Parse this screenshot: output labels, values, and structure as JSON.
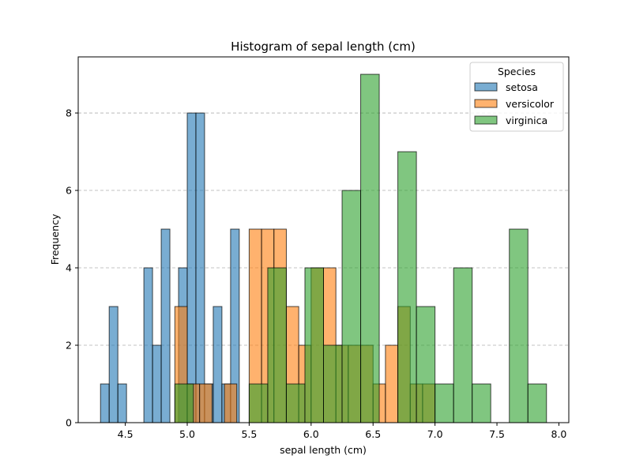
{
  "chart_data": {
    "type": "histogram",
    "title": "Histogram of sepal length (cm)",
    "xlabel": "sepal length (cm)",
    "ylabel": "Frequency",
    "xlim": [
      4.12,
      8.08
    ],
    "ylim": [
      0,
      9.45
    ],
    "xticks": [
      "4.5",
      "5.0",
      "5.5",
      "6.0",
      "6.5",
      "7.0",
      "7.5",
      "8.0"
    ],
    "yticks": [
      "0",
      "2",
      "4",
      "6",
      "8"
    ],
    "grid": "y-dashed",
    "legend": {
      "title": "Species",
      "placement": "top-right",
      "entries": [
        "setosa",
        "versicolor",
        "virginica"
      ]
    },
    "series": [
      {
        "name": "setosa",
        "color": "#1f77b4",
        "bins": [
          {
            "x0": 4.3,
            "x1": 4.37,
            "count": 1
          },
          {
            "x0": 4.37,
            "x1": 4.44,
            "count": 3
          },
          {
            "x0": 4.44,
            "x1": 4.51,
            "count": 1
          },
          {
            "x0": 4.51,
            "x1": 4.58,
            "count": 0
          },
          {
            "x0": 4.58,
            "x1": 4.65,
            "count": 0
          },
          {
            "x0": 4.65,
            "x1": 4.72,
            "count": 4
          },
          {
            "x0": 4.72,
            "x1": 4.79,
            "count": 2
          },
          {
            "x0": 4.79,
            "x1": 4.86,
            "count": 5
          },
          {
            "x0": 4.86,
            "x1": 4.93,
            "count": 0
          },
          {
            "x0": 4.93,
            "x1": 5.0,
            "count": 4
          },
          {
            "x0": 5.0,
            "x1": 5.07,
            "count": 8
          },
          {
            "x0": 5.07,
            "x1": 5.14,
            "count": 8
          },
          {
            "x0": 5.14,
            "x1": 5.21,
            "count": 1
          },
          {
            "x0": 5.21,
            "x1": 5.28,
            "count": 3
          },
          {
            "x0": 5.28,
            "x1": 5.35,
            "count": 1
          },
          {
            "x0": 5.35,
            "x1": 5.42,
            "count": 5
          },
          {
            "x0": 5.42,
            "x1": 5.49,
            "count": 0
          },
          {
            "x0": 5.49,
            "x1": 5.56,
            "count": 0
          },
          {
            "x0": 5.56,
            "x1": 5.63,
            "count": 0
          },
          {
            "x0": 5.63,
            "x1": 5.7,
            "count": 0
          },
          {
            "x0": 5.7,
            "x1": 5.8,
            "count": 0
          }
        ]
      },
      {
        "name": "versicolor",
        "color": "#ff7f0e",
        "bins": [
          {
            "x0": 4.9,
            "x1": 5.0,
            "count": 3
          },
          {
            "x0": 5.0,
            "x1": 5.1,
            "count": 1
          },
          {
            "x0": 5.1,
            "x1": 5.2,
            "count": 1
          },
          {
            "x0": 5.2,
            "x1": 5.3,
            "count": 0
          },
          {
            "x0": 5.3,
            "x1": 5.4,
            "count": 1
          },
          {
            "x0": 5.4,
            "x1": 5.5,
            "count": 0
          },
          {
            "x0": 5.5,
            "x1": 5.6,
            "count": 5
          },
          {
            "x0": 5.6,
            "x1": 5.7,
            "count": 5
          },
          {
            "x0": 5.7,
            "x1": 5.8,
            "count": 5
          },
          {
            "x0": 5.8,
            "x1": 5.9,
            "count": 3
          },
          {
            "x0": 5.9,
            "x1": 6.0,
            "count": 2
          },
          {
            "x0": 6.0,
            "x1": 6.1,
            "count": 4
          },
          {
            "x0": 6.1,
            "x1": 6.2,
            "count": 4
          },
          {
            "x0": 6.2,
            "x1": 6.3,
            "count": 2
          },
          {
            "x0": 6.3,
            "x1": 6.4,
            "count": 2
          },
          {
            "x0": 6.4,
            "x1": 6.5,
            "count": 2
          },
          {
            "x0": 6.5,
            "x1": 6.6,
            "count": 1
          },
          {
            "x0": 6.6,
            "x1": 6.7,
            "count": 2
          },
          {
            "x0": 6.7,
            "x1": 6.8,
            "count": 3
          },
          {
            "x0": 6.8,
            "x1": 6.9,
            "count": 1
          },
          {
            "x0": 6.9,
            "x1": 7.0,
            "count": 1
          }
        ]
      },
      {
        "name": "virginica",
        "color": "#2ca02c",
        "bins": [
          {
            "x0": 4.9,
            "x1": 5.05,
            "count": 1
          },
          {
            "x0": 5.05,
            "x1": 5.2,
            "count": 0
          },
          {
            "x0": 5.2,
            "x1": 5.35,
            "count": 0
          },
          {
            "x0": 5.35,
            "x1": 5.5,
            "count": 0
          },
          {
            "x0": 5.5,
            "x1": 5.65,
            "count": 1
          },
          {
            "x0": 5.65,
            "x1": 5.8,
            "count": 4
          },
          {
            "x0": 5.8,
            "x1": 5.95,
            "count": 1
          },
          {
            "x0": 5.95,
            "x1": 6.1,
            "count": 4
          },
          {
            "x0": 6.1,
            "x1": 6.25,
            "count": 2
          },
          {
            "x0": 6.25,
            "x1": 6.4,
            "count": 6
          },
          {
            "x0": 6.4,
            "x1": 6.55,
            "count": 9
          },
          {
            "x0": 6.55,
            "x1": 6.7,
            "count": 0
          },
          {
            "x0": 6.7,
            "x1": 6.85,
            "count": 7
          },
          {
            "x0": 6.85,
            "x1": 7.0,
            "count": 3
          },
          {
            "x0": 7.0,
            "x1": 7.15,
            "count": 1
          },
          {
            "x0": 7.15,
            "x1": 7.3,
            "count": 4
          },
          {
            "x0": 7.3,
            "x1": 7.45,
            "count": 1
          },
          {
            "x0": 7.45,
            "x1": 7.6,
            "count": 0
          },
          {
            "x0": 7.6,
            "x1": 7.75,
            "count": 5
          },
          {
            "x0": 7.75,
            "x1": 7.9,
            "count": 1
          }
        ]
      }
    ]
  }
}
